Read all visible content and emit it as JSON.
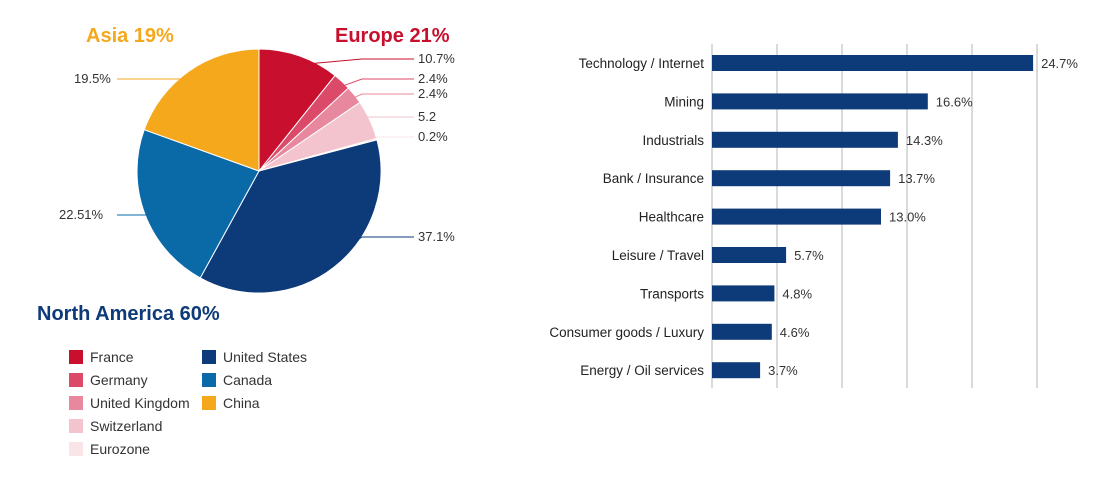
{
  "chart_data": [
    {
      "type": "pie",
      "regions": [
        {
          "label": "Europe 21%",
          "color": "#c8102e"
        },
        {
          "label": "Asia 19%",
          "color": "#f5a81c"
        },
        {
          "label": "North America 60%",
          "color": "#0d3a78"
        }
      ],
      "slices": [
        {
          "name": "France",
          "value": 10.7,
          "label": "10.7%",
          "color": "#c8102e"
        },
        {
          "name": "Germany",
          "value": 2.4,
          "label": "2.4%",
          "color": "#dc4a6a"
        },
        {
          "name": "United Kingdom",
          "value": 2.4,
          "label": "2.4%",
          "color": "#e8889e"
        },
        {
          "name": "Switzerland",
          "value": 5.2,
          "label": "5.2",
          "color": "#f3c4ce"
        },
        {
          "name": "Eurozone",
          "value": 0.2,
          "label": "0.2%",
          "color": "#f9e4e8"
        },
        {
          "name": "United States",
          "value": 37.1,
          "label": "37.1%",
          "color": "#0d3a78"
        },
        {
          "name": "Canada",
          "value": 22.51,
          "label": "22.51%",
          "color": "#0a6aa8"
        },
        {
          "name": "China",
          "value": 19.5,
          "label": "19.5%",
          "color": "#f5a81c"
        }
      ],
      "legend": [
        [
          "France",
          "Germany",
          "United Kingdom",
          "Switzerland",
          "Eurozone"
        ],
        [
          "United States",
          "Canada",
          "China"
        ]
      ]
    },
    {
      "type": "bar",
      "orientation": "horizontal",
      "categories": [
        "Technology / Internet",
        "Mining",
        "Industrials",
        "Bank / Insurance",
        "Healthcare",
        "Leisure / Travel",
        "Transports",
        "Consumer goods / Luxury",
        "Energy / Oil services"
      ],
      "values": [
        24.7,
        16.6,
        14.3,
        13.7,
        13.0,
        5.7,
        4.8,
        4.6,
        3.7
      ],
      "value_labels": [
        "24.7%",
        "16.6%",
        "14.3%",
        "13.7%",
        "13.0%",
        "5.7%",
        "4.8%",
        "4.6%",
        "3.7%"
      ],
      "color": "#0d3a78",
      "xlim": [
        0,
        25
      ],
      "grid": true
    }
  ]
}
